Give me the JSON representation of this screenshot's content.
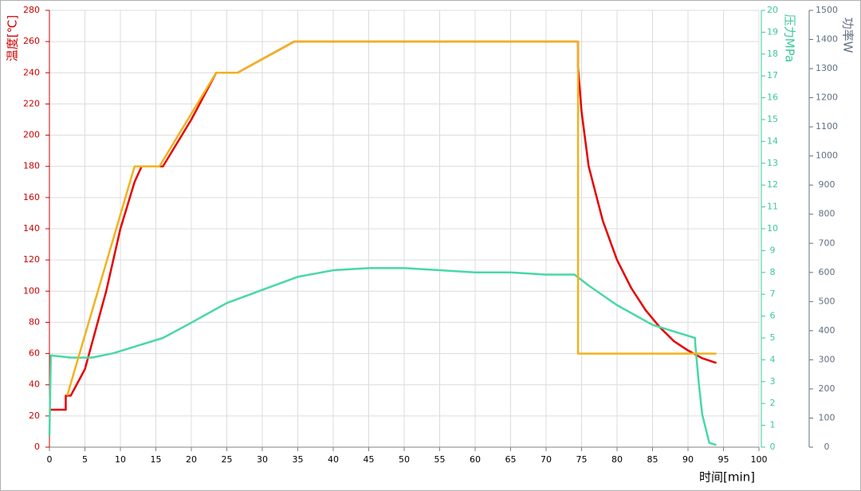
{
  "chart_data": {
    "type": "line",
    "ylabel": "温度[℃]",
    "y2label": "压力MPa",
    "y3label": "功率W",
    "xlabel": "时间[min]",
    "xlim": [
      0,
      100
    ],
    "xticks": [
      0,
      5,
      10,
      15,
      20,
      25,
      30,
      35,
      40,
      45,
      50,
      55,
      60,
      65,
      70,
      75,
      80,
      85,
      90,
      95,
      100
    ],
    "ylim": [
      0,
      280
    ],
    "yticks": [
      0,
      20,
      40,
      60,
      80,
      100,
      120,
      140,
      160,
      180,
      200,
      220,
      240,
      260,
      280
    ],
    "y2lim": [
      0,
      20
    ],
    "y2ticks": [
      0,
      1,
      2,
      3,
      4,
      5,
      6,
      7,
      8,
      9,
      10,
      11,
      12,
      13,
      14,
      15,
      16,
      17,
      18,
      19,
      20
    ],
    "y3lim": [
      0,
      1500
    ],
    "y3ticks": [
      0,
      100,
      200,
      300,
      400,
      500,
      600,
      700,
      800,
      900,
      1000,
      1100,
      1200,
      1300,
      1400,
      1500
    ],
    "grid": true,
    "series": [
      {
        "color": "#e60000",
        "axis": "y",
        "x": [
          0,
          2.3,
          2.3,
          3,
          5,
          8,
          10,
          12,
          13,
          16,
          20,
          23.5,
          26.5,
          34.5,
          74.5,
          74.5,
          75,
          76,
          78,
          80,
          82,
          84,
          86,
          88,
          90,
          92,
          94
        ],
        "values": [
          24,
          24,
          33,
          33,
          50,
          100,
          140,
          170,
          180,
          180,
          210,
          240,
          240,
          260,
          260,
          244,
          215,
          180,
          145,
          120,
          102,
          88,
          77,
          68,
          62,
          57,
          54
        ]
      },
      {
        "color": "#48d8a4",
        "axis": "y2",
        "x": [
          0,
          0.2,
          3,
          6,
          9,
          12,
          16,
          20,
          25,
          30,
          35,
          40,
          45,
          50,
          55,
          60,
          65,
          70,
          74,
          76,
          80,
          85,
          88,
          91,
          91,
          91.5,
          92,
          93,
          94
        ],
        "values": [
          0.5,
          4.2,
          4.1,
          4.1,
          4.3,
          4.6,
          5.0,
          5.7,
          6.6,
          7.2,
          7.8,
          8.1,
          8.2,
          8.2,
          8.1,
          8.0,
          8.0,
          7.9,
          7.9,
          7.4,
          6.5,
          5.6,
          5.3,
          5.0,
          4.8,
          3.0,
          1.5,
          0.2,
          0.1
        ]
      },
      {
        "color": "#f2b21c",
        "axis": "y",
        "x": [
          2.5,
          12,
          15.5,
          23.5,
          26.5,
          34.5,
          74.5,
          74.5,
          94
        ],
        "values": [
          33,
          180,
          180,
          240,
          240,
          260,
          260,
          60,
          60
        ]
      }
    ]
  }
}
